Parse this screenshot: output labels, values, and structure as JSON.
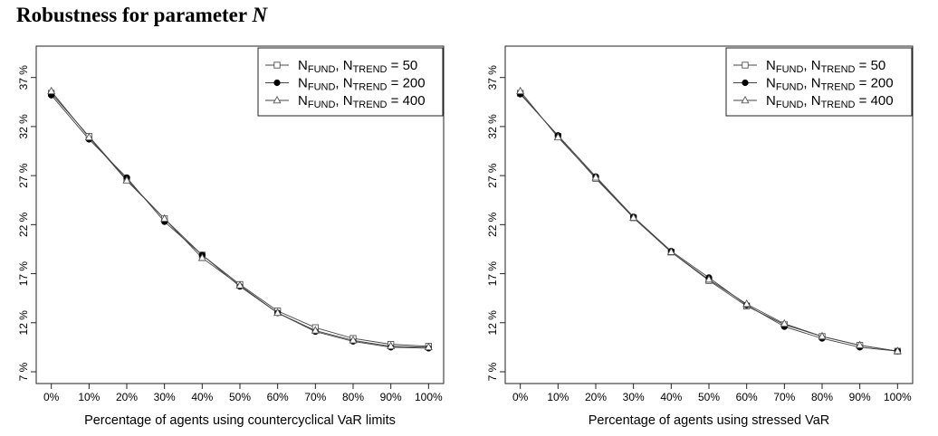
{
  "page": {
    "title_text": "Robustness for parameter ",
    "title_var": "N"
  },
  "chart_data": [
    {
      "type": "line",
      "xlabel": "Percentage of agents using countercyclical VaR limits",
      "ylabel": "",
      "x": [
        0,
        10,
        20,
        30,
        40,
        50,
        60,
        70,
        80,
        90,
        100
      ],
      "xticklabels": [
        "0%",
        "10%",
        "20%",
        "30%",
        "40%",
        "50%",
        "60%",
        "70%",
        "80%",
        "90%",
        "100%"
      ],
      "yticks": [
        7,
        12,
        17,
        22,
        27,
        32,
        37
      ],
      "yticklabels": [
        "7 %",
        "12 %",
        "17 %",
        "22 %",
        "27 %",
        "32 %",
        "37 %"
      ],
      "xlim": [
        -4,
        104
      ],
      "ylim": [
        5.8,
        40.2
      ],
      "legend_position": "top-right",
      "grid": false,
      "series": [
        {
          "name_main": "N",
          "name_sub1": "FUND",
          "name_mid": ", N",
          "name_sub2": "TREND",
          "name_tail": " = 50",
          "marker": "square-open",
          "values": [
            35.4,
            31.0,
            26.6,
            22.6,
            18.9,
            15.9,
            13.2,
            11.5,
            10.4,
            9.8,
            9.6
          ]
        },
        {
          "name_main": "N",
          "name_sub1": "FUND",
          "name_mid": ", N",
          "name_sub2": "TREND",
          "name_tail": " = 200",
          "marker": "circle-filled",
          "values": [
            35.2,
            30.7,
            26.8,
            22.3,
            18.9,
            15.7,
            13.0,
            11.1,
            10.1,
            9.5,
            9.4
          ]
        },
        {
          "name_main": "N",
          "name_sub1": "FUND",
          "name_mid": ", N",
          "name_sub2": "TREND",
          "name_tail": " = 400",
          "marker": "triangle-open",
          "values": [
            35.6,
            30.9,
            26.5,
            22.6,
            18.6,
            15.8,
            13.0,
            11.2,
            10.2,
            9.6,
            9.5
          ]
        }
      ]
    },
    {
      "type": "line",
      "xlabel": "Percentage of agents using stressed VaR",
      "ylabel": "",
      "x": [
        0,
        10,
        20,
        30,
        40,
        50,
        60,
        70,
        80,
        90,
        100
      ],
      "xticklabels": [
        "0%",
        "10%",
        "20%",
        "30%",
        "40%",
        "50%",
        "60%",
        "70%",
        "80%",
        "90%",
        "100%"
      ],
      "yticks": [
        7,
        12,
        17,
        22,
        27,
        32,
        37
      ],
      "yticklabels": [
        "7 %",
        "12 %",
        "17 %",
        "22 %",
        "27 %",
        "32 %",
        "37 %"
      ],
      "xlim": [
        -4,
        104
      ],
      "ylim": [
        5.8,
        40.2
      ],
      "legend_position": "top-right",
      "grid": false,
      "series": [
        {
          "name_main": "N",
          "name_sub1": "FUND",
          "name_mid": ", N",
          "name_sub2": "TREND",
          "name_tail": " = 50",
          "marker": "square-open",
          "values": [
            35.4,
            31.0,
            26.7,
            22.7,
            19.2,
            16.3,
            13.7,
            11.8,
            10.6,
            9.7,
            9.1
          ]
        },
        {
          "name_main": "N",
          "name_sub1": "FUND",
          "name_mid": ", N",
          "name_sub2": "TREND",
          "name_tail": " = 200",
          "marker": "circle-filled",
          "values": [
            35.3,
            31.1,
            26.9,
            22.8,
            19.3,
            16.6,
            13.8,
            11.6,
            10.4,
            9.5,
            9.1
          ]
        },
        {
          "name_main": "N",
          "name_sub1": "FUND",
          "name_mid": ", N",
          "name_sub2": "TREND",
          "name_tail": " = 400",
          "marker": "triangle-open",
          "values": [
            35.6,
            30.9,
            26.8,
            22.7,
            19.2,
            16.4,
            13.9,
            11.9,
            10.6,
            9.7,
            9.1
          ]
        }
      ]
    }
  ]
}
